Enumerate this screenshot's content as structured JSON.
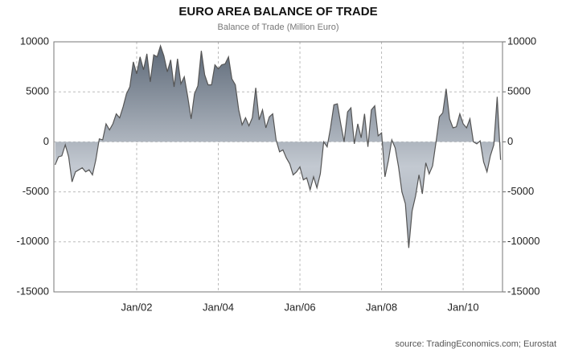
{
  "chart_data": {
    "type": "area",
    "title": "EURO AREA BALANCE OF TRADE",
    "subtitle": "Balance of Trade (Million Euro)",
    "source": "source: TradingEconomics.com; Eurostat",
    "color": "#555555",
    "categories": [
      null,
      null,
      null,
      null,
      null,
      null,
      null,
      null,
      null,
      null,
      null,
      null,
      null,
      null,
      null,
      null,
      null,
      null,
      null,
      null,
      null,
      null,
      null,
      null,
      "Jan/02",
      null,
      null,
      null,
      null,
      null,
      null,
      null,
      null,
      null,
      null,
      null,
      null,
      null,
      null,
      null,
      null,
      null,
      null,
      null,
      null,
      null,
      null,
      null,
      "Jan/04",
      null,
      null,
      null,
      null,
      null,
      null,
      null,
      null,
      null,
      null,
      null,
      null,
      null,
      null,
      null,
      null,
      null,
      null,
      null,
      null,
      null,
      null,
      null,
      "Jan/06",
      null,
      null,
      null,
      null,
      null,
      null,
      null,
      null,
      null,
      null,
      null,
      null,
      null,
      null,
      null,
      null,
      null,
      null,
      null,
      null,
      null,
      null,
      null,
      "Jan/08",
      null,
      null,
      null,
      null,
      null,
      null,
      null,
      null,
      null,
      null,
      null,
      null,
      null,
      null,
      null,
      null,
      null,
      null,
      null,
      null,
      null,
      null,
      null,
      "Jan/10",
      null,
      null,
      null,
      null,
      null,
      null,
      null,
      null,
      null,
      null,
      null
    ],
    "values": [
      -2300,
      -1500,
      -1400,
      -300,
      -1500,
      -4000,
      -3000,
      -2800,
      -2600,
      -3000,
      -2800,
      -3300,
      -1800,
      300,
      200,
      1800,
      1200,
      1800,
      2800,
      2400,
      3500,
      4800,
      5500,
      8000,
      6800,
      8500,
      7200,
      8800,
      6000,
      8700,
      8500,
      9600,
      8600,
      7000,
      8200,
      5500,
      8300,
      5800,
      6500,
      4500,
      2300,
      4800,
      5600,
      9100,
      6700,
      5700,
      5700,
      7700,
      7300,
      7700,
      7800,
      8500,
      6300,
      5700,
      3200,
      1700,
      2400,
      1600,
      2400,
      5400,
      2200,
      3200,
      1400,
      2500,
      2800,
      200,
      -1000,
      -800,
      -1600,
      -2200,
      -3300,
      -3000,
      -2500,
      -3800,
      -3600,
      -4800,
      -3500,
      -4600,
      -3200,
      0,
      -500,
      1400,
      3700,
      3800,
      1800,
      0,
      3000,
      3400,
      -200,
      1800,
      400,
      2800,
      -500,
      3200,
      3600,
      600,
      900,
      -3500,
      -1900,
      200,
      -600,
      -2500,
      -5000,
      -6200,
      -10600,
      -6900,
      -5400,
      -3300,
      -5200,
      -2100,
      -3200,
      -2400,
      -100,
      2500,
      2900,
      5300,
      2300,
      1400,
      1500,
      2800,
      1800,
      1400,
      2300,
      0,
      -200,
      100,
      -2000,
      -3000,
      -1400,
      -300,
      4500,
      -1800
    ],
    "ylim": [
      -15000,
      10000
    ],
    "yticks": [
      -15000,
      -10000,
      -5000,
      0,
      5000,
      10000
    ],
    "y2lim": [
      -15000,
      10000
    ],
    "y2ticks": [
      -15000,
      -10000,
      -5000,
      0,
      5000,
      10000
    ],
    "grid": true
  }
}
